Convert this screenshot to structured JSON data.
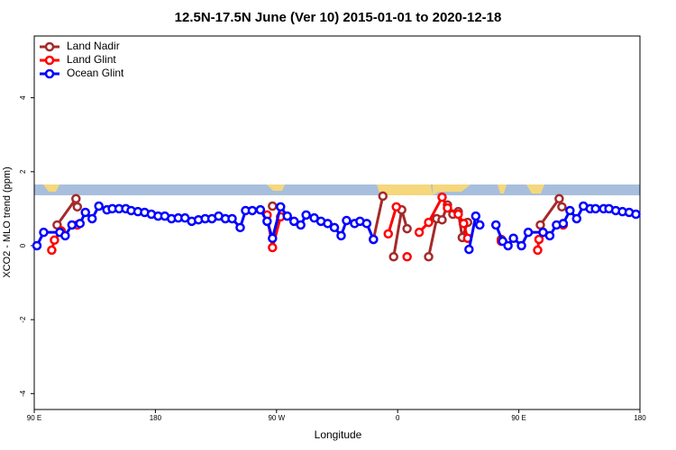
{
  "chart_data": {
    "type": "line",
    "title": "12.5N-17.5N June (Ver 10)   2015-01-01 to 2020-12-18",
    "x_label": "Longitude",
    "y_label": "XCO2 - MLO trend (ppm)",
    "xlim": [
      90,
      540
    ],
    "ylim": [
      -4.43,
      5.67
    ],
    "xticks": [
      {
        "value": 90,
        "label": "90 E"
      },
      180,
      {
        "value": 270,
        "label": "90 W"
      },
      {
        "value": 360,
        "label": "0"
      },
      {
        "value": 450,
        "label": "90 E"
      },
      {
        "value": 540,
        "label": "180"
      }
    ],
    "yticks": [
      -4,
      -2,
      0,
      2,
      4
    ],
    "legend": "topleft",
    "series": [
      {
        "name": "Land Nadir",
        "color": "#a52a2a",
        "x": [
          107,
          121,
          122,
          null,
          267,
          null,
          342,
          349,
          null,
          357,
          363,
          367,
          null,
          383,
          389,
          393,
          397,
          401,
          405,
          408,
          412,
          null,
          437,
          null,
          466,
          480,
          482
        ],
        "values": [
          0.56,
          1.27,
          1.05,
          null,
          1.07,
          null,
          0.17,
          1.34,
          null,
          -0.3,
          0.97,
          0.46,
          null,
          -0.3,
          0.73,
          0.7,
          1.1,
          0.85,
          0.92,
          0.22,
          0.63,
          null,
          0.17,
          null,
          0.56,
          1.27,
          1.05
        ]
      },
      {
        "name": "Land Glint",
        "color": "#ff0000",
        "x": [
          103,
          105,
          110,
          null,
          122,
          null,
          263,
          267,
          273,
          null,
          353,
          359,
          null,
          367,
          null,
          376,
          383,
          393,
          397,
          405,
          409,
          412,
          null,
          437,
          null,
          464,
          465,
          468,
          null,
          483
        ],
        "values": [
          -0.12,
          0.15,
          0.4,
          null,
          0.56,
          null,
          0.83,
          -0.05,
          0.78,
          null,
          0.32,
          1.05,
          null,
          -0.3,
          null,
          0.36,
          0.63,
          1.31,
          1.02,
          0.85,
          0.6,
          0.2,
          null,
          0.12,
          null,
          -0.12,
          0.17,
          0.36,
          null,
          0.56
        ]
      },
      {
        "name": "Ocean Glint",
        "color": "#0000ff",
        "x": [
          92,
          97,
          109,
          113,
          118,
          124,
          128,
          133,
          138,
          144,
          148,
          153,
          158,
          162,
          167,
          172,
          177,
          182,
          187,
          192,
          197,
          202,
          207,
          212,
          217,
          222,
          227,
          232,
          237,
          243,
          247,
          252,
          258,
          263,
          267,
          273,
          278,
          283,
          288,
          292,
          298,
          303,
          308,
          313,
          318,
          322,
          328,
          332,
          337,
          342,
          null,
          413,
          418,
          421,
          null,
          433,
          438,
          442,
          446,
          452,
          457,
          468,
          473,
          478,
          483,
          488,
          493,
          498,
          503,
          507,
          513,
          517,
          522,
          527,
          532,
          537
        ],
        "values": [
          0,
          0.36,
          0.36,
          0.27,
          0.56,
          0.6,
          0.9,
          0.73,
          1.07,
          0.97,
          1.0,
          1.0,
          1.0,
          0.95,
          0.92,
          0.9,
          0.85,
          0.8,
          0.8,
          0.73,
          0.75,
          0.75,
          0.66,
          0.7,
          0.73,
          0.73,
          0.8,
          0.73,
          0.73,
          0.49,
          0.95,
          0.95,
          0.97,
          0.66,
          0.2,
          1.05,
          0.8,
          0.66,
          0.56,
          0.83,
          0.75,
          0.66,
          0.6,
          0.49,
          0.27,
          0.68,
          0.6,
          0.66,
          0.6,
          0.17,
          null,
          -0.1,
          0.8,
          0.56,
          null,
          0.56,
          0.12,
          0,
          0.2,
          0,
          0.36,
          0.36,
          0.27,
          0.56,
          0.6,
          0.95,
          0.73,
          1.07,
          1.0,
          1.0,
          1.0,
          1.0,
          0.95,
          0.92,
          0.9,
          0.85
        ]
      }
    ]
  }
}
